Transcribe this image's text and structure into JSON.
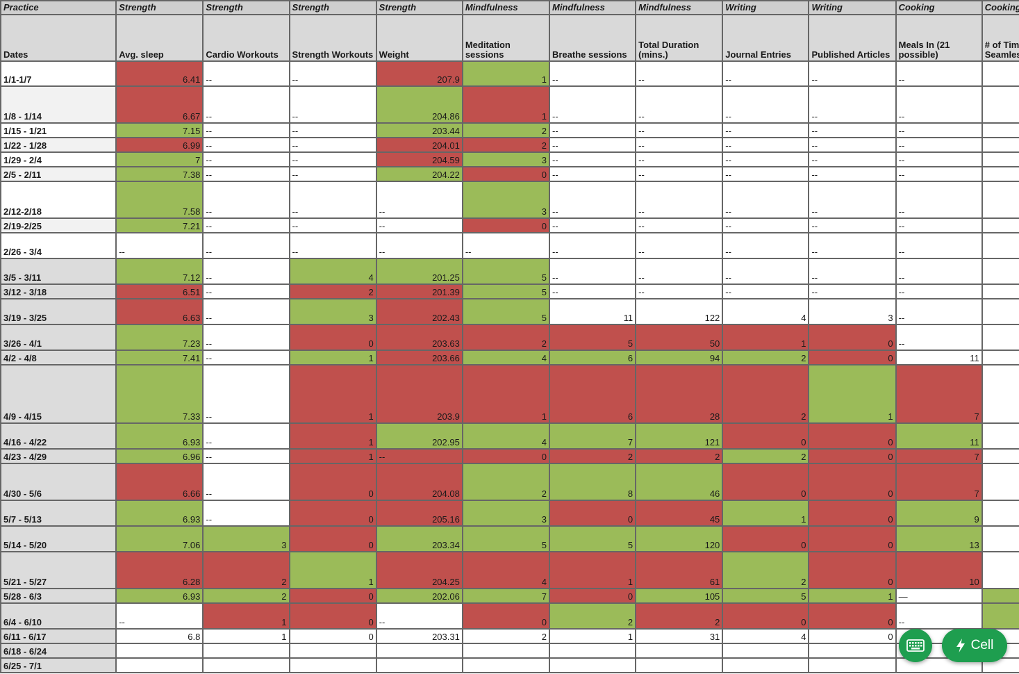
{
  "columns": [
    {
      "category": "Practice",
      "header": "Dates"
    },
    {
      "category": "Strength",
      "header": "Avg. sleep"
    },
    {
      "category": "Strength",
      "header": "Cardio Workouts"
    },
    {
      "category": "Strength",
      "header": "Strength Workouts"
    },
    {
      "category": "Strength",
      "header": "Weight"
    },
    {
      "category": "Mindfulness",
      "header": "Meditation sessions"
    },
    {
      "category": "Mindfulness",
      "header": "Breathe sessions"
    },
    {
      "category": "Mindfulness",
      "header": "Total Duration (mins.)"
    },
    {
      "category": "Writing",
      "header": "Journal Entries"
    },
    {
      "category": "Writing",
      "header": "Published Articles"
    },
    {
      "category": "Cooking",
      "header": "Meals In (21 possible)"
    },
    {
      "category": "Cooking",
      "header": "# of Times Seamless"
    }
  ],
  "rows": [
    {
      "date": "1/1-1/7",
      "cells": [
        {
          "v": "6.41",
          "c": "red"
        },
        {
          "v": "--"
        },
        {
          "v": "--"
        },
        {
          "v": "207.9",
          "c": "red"
        },
        {
          "v": "1",
          "c": "green"
        },
        {
          "v": "--"
        },
        {
          "v": "--"
        },
        {
          "v": "--"
        },
        {
          "v": "--"
        },
        {
          "v": "--"
        },
        {
          "v": ""
        }
      ]
    },
    {
      "date": "1/8 - 1/14",
      "cells": [
        {
          "v": "6.67",
          "c": "red"
        },
        {
          "v": "--"
        },
        {
          "v": "--"
        },
        {
          "v": "204.86",
          "c": "green"
        },
        {
          "v": "1",
          "c": "red"
        },
        {
          "v": "--"
        },
        {
          "v": "--"
        },
        {
          "v": "--"
        },
        {
          "v": "--"
        },
        {
          "v": "--"
        },
        {
          "v": ""
        }
      ]
    },
    {
      "date": "1/15 - 1/21",
      "cells": [
        {
          "v": "7.15",
          "c": "green"
        },
        {
          "v": "--"
        },
        {
          "v": "--"
        },
        {
          "v": "203.44",
          "c": "green"
        },
        {
          "v": "2",
          "c": "green"
        },
        {
          "v": "--"
        },
        {
          "v": "--"
        },
        {
          "v": "--"
        },
        {
          "v": "--"
        },
        {
          "v": "--"
        },
        {
          "v": ""
        }
      ]
    },
    {
      "date": "1/22 - 1/28",
      "cells": [
        {
          "v": "6.99",
          "c": "red"
        },
        {
          "v": "--"
        },
        {
          "v": "--"
        },
        {
          "v": "204.01",
          "c": "red"
        },
        {
          "v": "2",
          "c": "red"
        },
        {
          "v": "--"
        },
        {
          "v": "--"
        },
        {
          "v": "--"
        },
        {
          "v": "--"
        },
        {
          "v": "--"
        },
        {
          "v": ""
        }
      ]
    },
    {
      "date": "1/29 - 2/4",
      "cells": [
        {
          "v": "7",
          "c": "green"
        },
        {
          "v": "--"
        },
        {
          "v": "--"
        },
        {
          "v": "204.59",
          "c": "red"
        },
        {
          "v": "3",
          "c": "green"
        },
        {
          "v": "--"
        },
        {
          "v": "--"
        },
        {
          "v": "--"
        },
        {
          "v": "--"
        },
        {
          "v": "--"
        },
        {
          "v": ""
        }
      ]
    },
    {
      "date": "2/5 - 2/11",
      "cells": [
        {
          "v": "7.38",
          "c": "green"
        },
        {
          "v": "--"
        },
        {
          "v": "--"
        },
        {
          "v": "204.22",
          "c": "green"
        },
        {
          "v": "0",
          "c": "red"
        },
        {
          "v": "--"
        },
        {
          "v": "--"
        },
        {
          "v": "--"
        },
        {
          "v": "--"
        },
        {
          "v": "--"
        },
        {
          "v": ""
        }
      ]
    },
    {
      "date": "2/12-2/18",
      "cells": [
        {
          "v": "7.58",
          "c": "green"
        },
        {
          "v": "--"
        },
        {
          "v": "--"
        },
        {
          "v": "--"
        },
        {
          "v": "3",
          "c": "green"
        },
        {
          "v": "--"
        },
        {
          "v": "--"
        },
        {
          "v": "--"
        },
        {
          "v": "--"
        },
        {
          "v": "--"
        },
        {
          "v": ""
        }
      ]
    },
    {
      "date": "2/19-2/25",
      "cells": [
        {
          "v": "7.21",
          "c": "green"
        },
        {
          "v": "--"
        },
        {
          "v": "--"
        },
        {
          "v": "--"
        },
        {
          "v": "0",
          "c": "red"
        },
        {
          "v": "--"
        },
        {
          "v": "--"
        },
        {
          "v": "--"
        },
        {
          "v": "--"
        },
        {
          "v": "--"
        },
        {
          "v": ""
        }
      ]
    },
    {
      "date": "2/26 - 3/4",
      "cells": [
        {
          "v": "--"
        },
        {
          "v": "--"
        },
        {
          "v": "--"
        },
        {
          "v": "--"
        },
        {
          "v": "--"
        },
        {
          "v": "--"
        },
        {
          "v": "--"
        },
        {
          "v": "--"
        },
        {
          "v": "--"
        },
        {
          "v": "--"
        },
        {
          "v": ""
        }
      ]
    },
    {
      "date": "3/5 - 3/11",
      "cells": [
        {
          "v": "7.12",
          "c": "green"
        },
        {
          "v": "--"
        },
        {
          "v": "4",
          "c": "green"
        },
        {
          "v": "201.25",
          "c": "green"
        },
        {
          "v": "5",
          "c": "green"
        },
        {
          "v": "--"
        },
        {
          "v": "--"
        },
        {
          "v": "--"
        },
        {
          "v": "--"
        },
        {
          "v": "--"
        },
        {
          "v": ""
        }
      ]
    },
    {
      "date": "3/12 - 3/18",
      "cells": [
        {
          "v": "6.51",
          "c": "red"
        },
        {
          "v": "--"
        },
        {
          "v": "2",
          "c": "red"
        },
        {
          "v": "201.39",
          "c": "red"
        },
        {
          "v": "5",
          "c": "green"
        },
        {
          "v": "--"
        },
        {
          "v": "--"
        },
        {
          "v": "--"
        },
        {
          "v": "--"
        },
        {
          "v": "--"
        },
        {
          "v": ""
        }
      ]
    },
    {
      "date": "3/19 - 3/25",
      "cells": [
        {
          "v": "6.63",
          "c": "red"
        },
        {
          "v": "--"
        },
        {
          "v": "3",
          "c": "green"
        },
        {
          "v": "202.43",
          "c": "red"
        },
        {
          "v": "5",
          "c": "green"
        },
        {
          "v": "11"
        },
        {
          "v": "122"
        },
        {
          "v": "4"
        },
        {
          "v": "3"
        },
        {
          "v": "--"
        },
        {
          "v": ""
        }
      ]
    },
    {
      "date": "3/26 - 4/1",
      "cells": [
        {
          "v": "7.23",
          "c": "green"
        },
        {
          "v": "--"
        },
        {
          "v": "0",
          "c": "red"
        },
        {
          "v": "203.63",
          "c": "red"
        },
        {
          "v": "2",
          "c": "red"
        },
        {
          "v": "5",
          "c": "red"
        },
        {
          "v": "50",
          "c": "red"
        },
        {
          "v": "1",
          "c": "red"
        },
        {
          "v": "0",
          "c": "red"
        },
        {
          "v": "--"
        },
        {
          "v": ""
        }
      ]
    },
    {
      "date": "4/2 - 4/8",
      "cells": [
        {
          "v": "7.41",
          "c": "green"
        },
        {
          "v": "--"
        },
        {
          "v": "1",
          "c": "green"
        },
        {
          "v": "203.66",
          "c": "red"
        },
        {
          "v": "4",
          "c": "green"
        },
        {
          "v": "6",
          "c": "green"
        },
        {
          "v": "94",
          "c": "green"
        },
        {
          "v": "2",
          "c": "green"
        },
        {
          "v": "0",
          "c": "red"
        },
        {
          "v": "11"
        },
        {
          "v": ""
        }
      ]
    },
    {
      "date": "4/9 - 4/15",
      "cells": [
        {
          "v": "7.33",
          "c": "green"
        },
        {
          "v": "--"
        },
        {
          "v": "1",
          "c": "red"
        },
        {
          "v": "203.9",
          "c": "red"
        },
        {
          "v": "1",
          "c": "red"
        },
        {
          "v": "6",
          "c": "red"
        },
        {
          "v": "28",
          "c": "red"
        },
        {
          "v": "2",
          "c": "red"
        },
        {
          "v": "1",
          "c": "green"
        },
        {
          "v": "7",
          "c": "red"
        },
        {
          "v": ""
        }
      ]
    },
    {
      "date": "4/16 - 4/22",
      "cells": [
        {
          "v": "6.93",
          "c": "green"
        },
        {
          "v": "--"
        },
        {
          "v": "1",
          "c": "red"
        },
        {
          "v": "202.95",
          "c": "green"
        },
        {
          "v": "4",
          "c": "green"
        },
        {
          "v": "7",
          "c": "green"
        },
        {
          "v": "121",
          "c": "green"
        },
        {
          "v": "0",
          "c": "red"
        },
        {
          "v": "0",
          "c": "red"
        },
        {
          "v": "11",
          "c": "green"
        },
        {
          "v": ""
        }
      ]
    },
    {
      "date": "4/23 - 4/29",
      "cells": [
        {
          "v": "6.96",
          "c": "green"
        },
        {
          "v": "--"
        },
        {
          "v": "1",
          "c": "red"
        },
        {
          "v": "--",
          "c": "red"
        },
        {
          "v": "0",
          "c": "red"
        },
        {
          "v": "2",
          "c": "red"
        },
        {
          "v": "2",
          "c": "red"
        },
        {
          "v": "2",
          "c": "green"
        },
        {
          "v": "0",
          "c": "red"
        },
        {
          "v": "7",
          "c": "red"
        },
        {
          "v": ""
        }
      ]
    },
    {
      "date": "4/30 - 5/6",
      "cells": [
        {
          "v": "6.66",
          "c": "red"
        },
        {
          "v": "--"
        },
        {
          "v": "0",
          "c": "red"
        },
        {
          "v": "204.08",
          "c": "red"
        },
        {
          "v": "2",
          "c": "green"
        },
        {
          "v": "8",
          "c": "green"
        },
        {
          "v": "46",
          "c": "green"
        },
        {
          "v": "0",
          "c": "red"
        },
        {
          "v": "0",
          "c": "red"
        },
        {
          "v": "7",
          "c": "red"
        },
        {
          "v": ""
        }
      ]
    },
    {
      "date": "5/7 - 5/13",
      "cells": [
        {
          "v": "6.93",
          "c": "green"
        },
        {
          "v": "--"
        },
        {
          "v": "0",
          "c": "red"
        },
        {
          "v": "205.16",
          "c": "red"
        },
        {
          "v": "3",
          "c": "green"
        },
        {
          "v": "0",
          "c": "red"
        },
        {
          "v": "45",
          "c": "red"
        },
        {
          "v": "1",
          "c": "green"
        },
        {
          "v": "0",
          "c": "red"
        },
        {
          "v": "9",
          "c": "green"
        },
        {
          "v": ""
        }
      ]
    },
    {
      "date": "5/14 - 5/20",
      "cells": [
        {
          "v": "7.06",
          "c": "green"
        },
        {
          "v": "3",
          "c": "green"
        },
        {
          "v": "0",
          "c": "red"
        },
        {
          "v": "203.34",
          "c": "green"
        },
        {
          "v": "5",
          "c": "green"
        },
        {
          "v": "5",
          "c": "green"
        },
        {
          "v": "120",
          "c": "green"
        },
        {
          "v": "0",
          "c": "red"
        },
        {
          "v": "0",
          "c": "red"
        },
        {
          "v": "13",
          "c": "green"
        },
        {
          "v": ""
        }
      ]
    },
    {
      "date": "5/21 - 5/27",
      "cells": [
        {
          "v": "6.28",
          "c": "red"
        },
        {
          "v": "2",
          "c": "red"
        },
        {
          "v": "1",
          "c": "green"
        },
        {
          "v": "204.25",
          "c": "red"
        },
        {
          "v": "4",
          "c": "red"
        },
        {
          "v": "1",
          "c": "red"
        },
        {
          "v": "61",
          "c": "red"
        },
        {
          "v": "2",
          "c": "green"
        },
        {
          "v": "0",
          "c": "red"
        },
        {
          "v": "10",
          "c": "red"
        },
        {
          "v": ""
        }
      ]
    },
    {
      "date": "5/28 - 6/3",
      "cells": [
        {
          "v": "6.93",
          "c": "green"
        },
        {
          "v": "2",
          "c": "green"
        },
        {
          "v": "0",
          "c": "red"
        },
        {
          "v": "202.06",
          "c": "green"
        },
        {
          "v": "7",
          "c": "green"
        },
        {
          "v": "0",
          "c": "red"
        },
        {
          "v": "105",
          "c": "green"
        },
        {
          "v": "5",
          "c": "green"
        },
        {
          "v": "1",
          "c": "green"
        },
        {
          "v": "—"
        },
        {
          "v": "",
          "c": "green"
        }
      ]
    },
    {
      "date": "6/4 - 6/10",
      "cells": [
        {
          "v": "--"
        },
        {
          "v": "1",
          "c": "red"
        },
        {
          "v": "0",
          "c": "red"
        },
        {
          "v": "--"
        },
        {
          "v": "0",
          "c": "red"
        },
        {
          "v": "2",
          "c": "green"
        },
        {
          "v": "2",
          "c": "red"
        },
        {
          "v": "0",
          "c": "red"
        },
        {
          "v": "0",
          "c": "red"
        },
        {
          "v": "--"
        },
        {
          "v": "",
          "c": "green"
        }
      ]
    },
    {
      "date": "6/11 - 6/17",
      "cells": [
        {
          "v": "6.8"
        },
        {
          "v": "1"
        },
        {
          "v": "0"
        },
        {
          "v": "203.31"
        },
        {
          "v": "2"
        },
        {
          "v": "1"
        },
        {
          "v": "31"
        },
        {
          "v": "4"
        },
        {
          "v": "0"
        },
        {
          "v": ""
        },
        {
          "v": ""
        }
      ]
    },
    {
      "date": "6/18 - 6/24",
      "cells": [
        {
          "v": ""
        },
        {
          "v": ""
        },
        {
          "v": ""
        },
        {
          "v": ""
        },
        {
          "v": ""
        },
        {
          "v": ""
        },
        {
          "v": ""
        },
        {
          "v": ""
        },
        {
          "v": ""
        },
        {
          "v": ""
        },
        {
          "v": ""
        }
      ]
    },
    {
      "date": "6/25 - 7/1",
      "cells": [
        {
          "v": ""
        },
        {
          "v": ""
        },
        {
          "v": ""
        },
        {
          "v": ""
        },
        {
          "v": ""
        },
        {
          "v": ""
        },
        {
          "v": ""
        },
        {
          "v": ""
        },
        {
          "v": ""
        },
        {
          "v": ""
        },
        {
          "v": ""
        }
      ]
    }
  ],
  "colors": {
    "good": "#9bbb59",
    "bad": "#c0504d",
    "fab": "#1e9e4f"
  },
  "fab": {
    "keyboard_icon": "keyboard-icon",
    "cell_icon": "lightning-bolt-icon",
    "cell_label": "Cell"
  }
}
